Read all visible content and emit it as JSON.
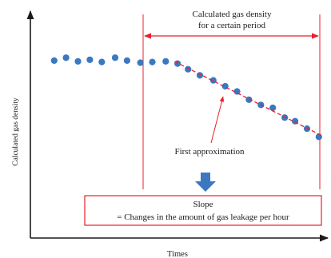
{
  "labels": {
    "y_axis": "Calculated gas density",
    "x_axis": "Times",
    "period_line1": "Calculated gas density",
    "period_line2": "for a certain period",
    "approximation": "First approximation",
    "slope_line1": "Slope",
    "slope_line2": "= Changes in the amount of gas leakage per hour"
  },
  "colors": {
    "axis": "#1a1a1a",
    "dot": "#3a78c2",
    "period_bracket": "#e8202a",
    "approximation_line": "#e8202a",
    "slope_box_border": "#e8202a",
    "down_arrow": "#3a78c2",
    "text": "#1a1a1a"
  },
  "icons": {
    "down_arrow": "down-arrow-icon",
    "period_arrows": "double-headed-arrow-icon"
  },
  "chart_data": {
    "type": "scatter",
    "title": "",
    "xlabel": "Times",
    "ylabel": "Calculated gas density",
    "grid": false,
    "legend": "none",
    "y_max": 100,
    "x_max": 100,
    "series": [
      {
        "points": [
          {
            "x": 8.0,
            "y": 78.2
          },
          {
            "x": 12.0,
            "y": 79.5
          },
          {
            "x": 16.0,
            "y": 77.9
          },
          {
            "x": 20.0,
            "y": 78.6
          },
          {
            "x": 24.0,
            "y": 77.6
          },
          {
            "x": 28.5,
            "y": 79.5
          },
          {
            "x": 32.5,
            "y": 78.2
          },
          {
            "x": 37.0,
            "y": 77.3
          },
          {
            "x": 41.0,
            "y": 77.6
          },
          {
            "x": 45.5,
            "y": 77.9
          },
          {
            "x": 49.5,
            "y": 76.9
          },
          {
            "x": 53.0,
            "y": 74.4
          },
          {
            "x": 57.0,
            "y": 71.7
          },
          {
            "x": 61.5,
            "y": 69.5
          },
          {
            "x": 65.5,
            "y": 66.9
          },
          {
            "x": 69.5,
            "y": 64.6
          },
          {
            "x": 73.5,
            "y": 61.0
          },
          {
            "x": 77.5,
            "y": 58.7
          },
          {
            "x": 81.5,
            "y": 57.4
          },
          {
            "x": 85.5,
            "y": 53.1
          },
          {
            "x": 89.0,
            "y": 51.5
          },
          {
            "x": 93.0,
            "y": 48.2
          },
          {
            "x": 97.0,
            "y": 44.6
          }
        ]
      }
    ]
  }
}
